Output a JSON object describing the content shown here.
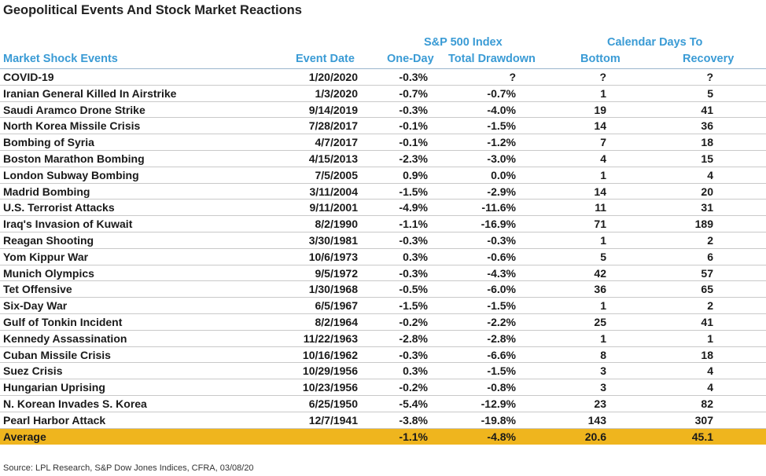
{
  "title": "Geopolitical Events And Stock Market Reactions",
  "group_headers": {
    "sp500": "S&P 500 Index",
    "calendar": "Calendar Days To"
  },
  "columns": {
    "event": "Market Shock Events",
    "date": "Event Date",
    "one_day": "One-Day",
    "drawdown": "Total Drawdown",
    "bottom": "Bottom",
    "recovery": "Recovery"
  },
  "colors": {
    "header_blue": "#3a9bd5",
    "average_highlight": "#efb51e"
  },
  "chart_data": {
    "type": "table",
    "title": "Geopolitical Events And Stock Market Reactions",
    "columns": [
      "Market Shock Events",
      "Event Date",
      "One-Day",
      "Total Drawdown",
      "Bottom",
      "Recovery"
    ],
    "rows": [
      [
        "COVID-19",
        "1/20/2020",
        "-0.3%",
        "?",
        "?",
        "?"
      ],
      [
        "Iranian General Killed In Airstrike",
        "1/3/2020",
        "-0.7%",
        "-0.7%",
        "1",
        "5"
      ],
      [
        "Saudi Aramco Drone Strike",
        "9/14/2019",
        "-0.3%",
        "-4.0%",
        "19",
        "41"
      ],
      [
        "North Korea Missile Crisis",
        "7/28/2017",
        "-0.1%",
        "-1.5%",
        "14",
        "36"
      ],
      [
        "Bombing of Syria",
        "4/7/2017",
        "-0.1%",
        "-1.2%",
        "7",
        "18"
      ],
      [
        "Boston Marathon Bombing",
        "4/15/2013",
        "-2.3%",
        "-3.0%",
        "4",
        "15"
      ],
      [
        "London Subway Bombing",
        "7/5/2005",
        "0.9%",
        "0.0%",
        "1",
        "4"
      ],
      [
        "Madrid Bombing",
        "3/11/2004",
        "-1.5%",
        "-2.9%",
        "14",
        "20"
      ],
      [
        "U.S. Terrorist Attacks",
        "9/11/2001",
        "-4.9%",
        "-11.6%",
        "11",
        "31"
      ],
      [
        "Iraq's Invasion of Kuwait",
        "8/2/1990",
        "-1.1%",
        "-16.9%",
        "71",
        "189"
      ],
      [
        "Reagan Shooting",
        "3/30/1981",
        "-0.3%",
        "-0.3%",
        "1",
        "2"
      ],
      [
        "Yom Kippur War",
        "10/6/1973",
        "0.3%",
        "-0.6%",
        "5",
        "6"
      ],
      [
        "Munich Olympics",
        "9/5/1972",
        "-0.3%",
        "-4.3%",
        "42",
        "57"
      ],
      [
        "Tet Offensive",
        "1/30/1968",
        "-0.5%",
        "-6.0%",
        "36",
        "65"
      ],
      [
        "Six-Day War",
        "6/5/1967",
        "-1.5%",
        "-1.5%",
        "1",
        "2"
      ],
      [
        "Gulf of Tonkin Incident",
        "8/2/1964",
        "-0.2%",
        "-2.2%",
        "25",
        "41"
      ],
      [
        "Kennedy Assassination",
        "11/22/1963",
        "-2.8%",
        "-2.8%",
        "1",
        "1"
      ],
      [
        "Cuban Missile Crisis",
        "10/16/1962",
        "-0.3%",
        "-6.6%",
        "8",
        "18"
      ],
      [
        "Suez Crisis",
        "10/29/1956",
        "0.3%",
        "-1.5%",
        "3",
        "4"
      ],
      [
        "Hungarian Uprising",
        "10/23/1956",
        "-0.2%",
        "-0.8%",
        "3",
        "4"
      ],
      [
        "N. Korean Invades S. Korea",
        "6/25/1950",
        "-5.4%",
        "-12.9%",
        "23",
        "82"
      ],
      [
        "Pearl Harbor Attack",
        "12/7/1941",
        "-3.8%",
        "-19.8%",
        "143",
        "307"
      ]
    ],
    "average": [
      "Average",
      "",
      "-1.1%",
      "-4.8%",
      "20.6",
      "45.1"
    ]
  },
  "source": "Source: LPL Research, S&P Dow Jones Indices, CFRA, 03/08/20"
}
